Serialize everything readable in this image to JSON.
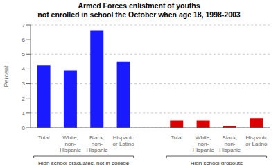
{
  "chart_data": {
    "type": "bar",
    "title": "Armed Forces enlistment of youths\nnot enrolled in school the October when age 18, 1998-2003",
    "ylabel": "Percent",
    "categories": [
      "Total",
      "White,\nnon-\nHispanic",
      "Black,\nnon-\nHispanic",
      "Hispanic\nor Latino"
    ],
    "series": [
      {
        "name": "High school graduates, not in college",
        "color": "#1a1aff",
        "values": [
          4.25,
          3.9,
          6.65,
          4.5
        ]
      },
      {
        "name": "High school dropouts",
        "color": "#dd0000",
        "values": [
          0.5,
          0.5,
          0.1,
          0.65
        ]
      }
    ],
    "ylim": [
      0,
      7
    ],
    "yticks": [
      0,
      1,
      2,
      3,
      4,
      5,
      6,
      7
    ],
    "grid": true
  }
}
